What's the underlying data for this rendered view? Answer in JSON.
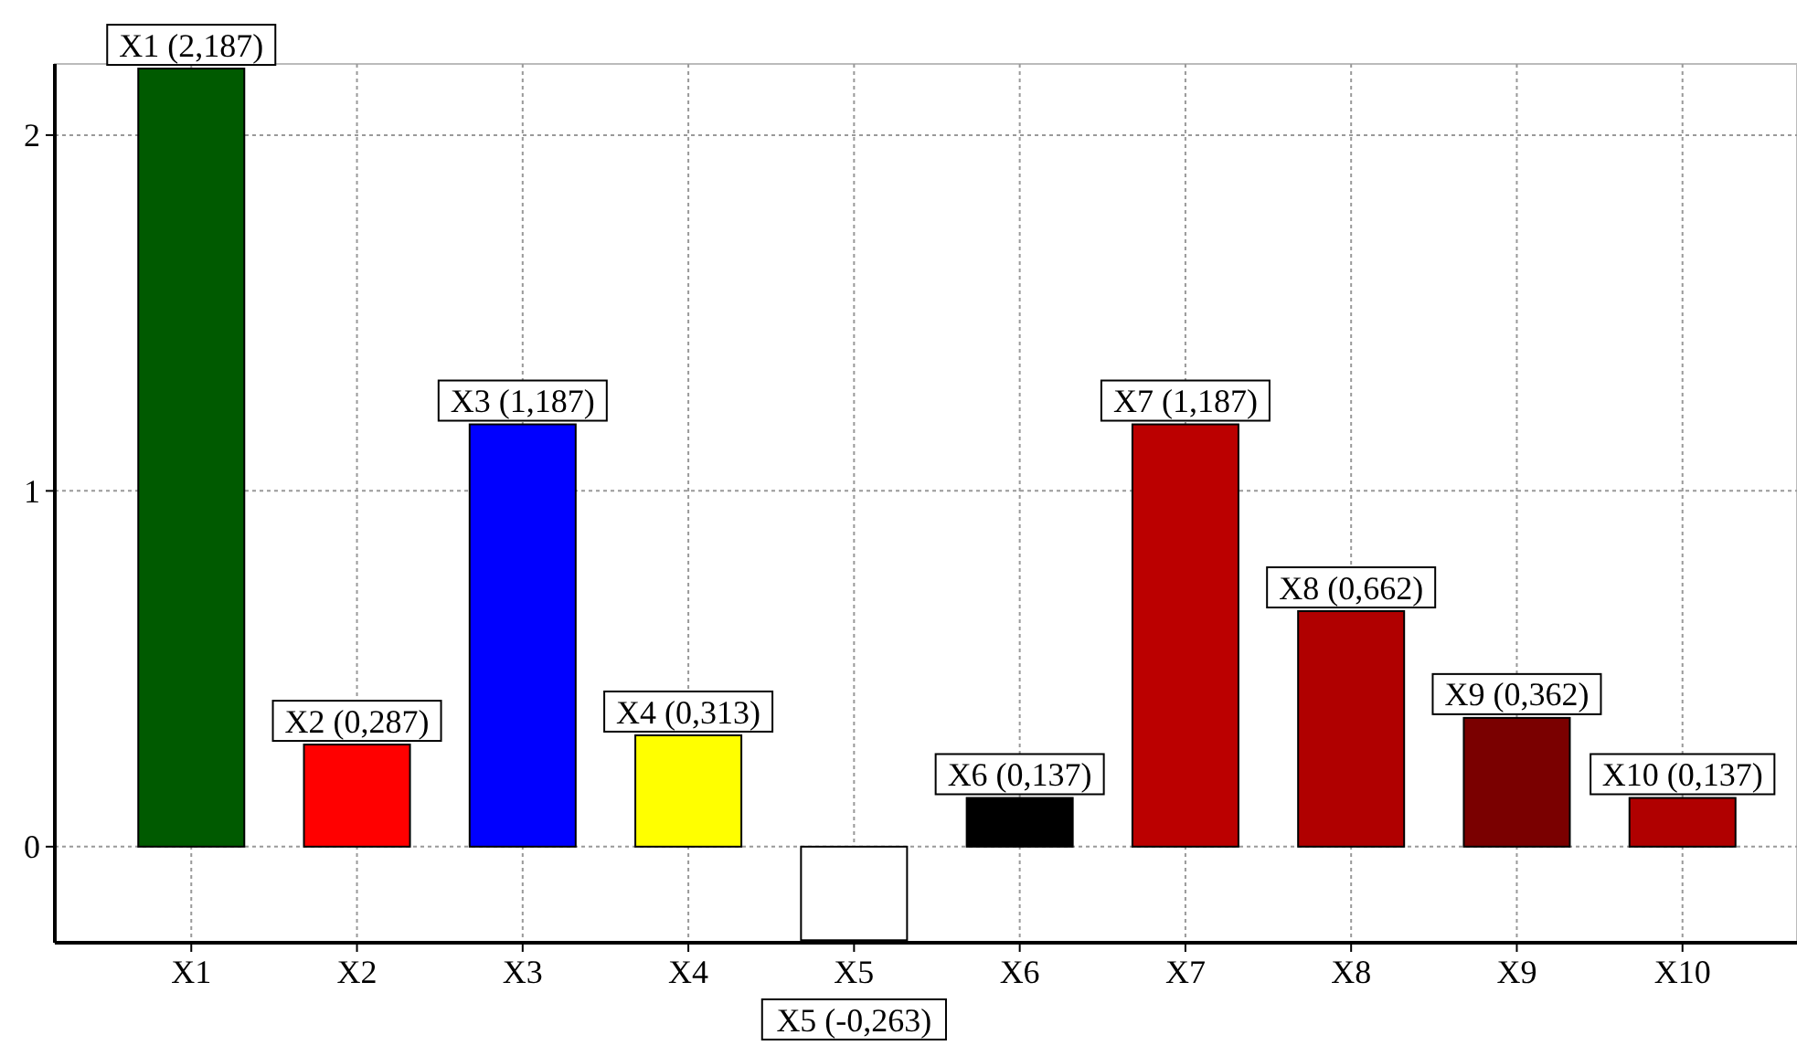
{
  "chart_data": {
    "type": "bar",
    "categories": [
      "X1",
      "X2",
      "X3",
      "X4",
      "X5",
      "X6",
      "X7",
      "X8",
      "X9",
      "X10"
    ],
    "values": [
      2.187,
      0.287,
      1.187,
      0.313,
      -0.263,
      0.137,
      1.187,
      0.662,
      0.362,
      0.137
    ],
    "colors": [
      "#005a00",
      "#ff0000",
      "#0000ff",
      "#ffff00",
      "#ffffff",
      "#000000",
      "#bb0000",
      "#b00000",
      "#7a0000",
      "#b00000"
    ],
    "value_labels": [
      "X1 (2,187)",
      "X2 (0,287)",
      "X3 (1,187)",
      "X4 (0,313)",
      "X5 (-0,263)",
      "X6 (0,137)",
      "X7 (1,187)",
      "X8 (0,662)",
      "X9 (0,362)",
      "X10 (0,137)"
    ],
    "ylim": [
      -0.27,
      2.2
    ],
    "yticks": [
      0,
      1,
      2
    ],
    "grid": true
  }
}
